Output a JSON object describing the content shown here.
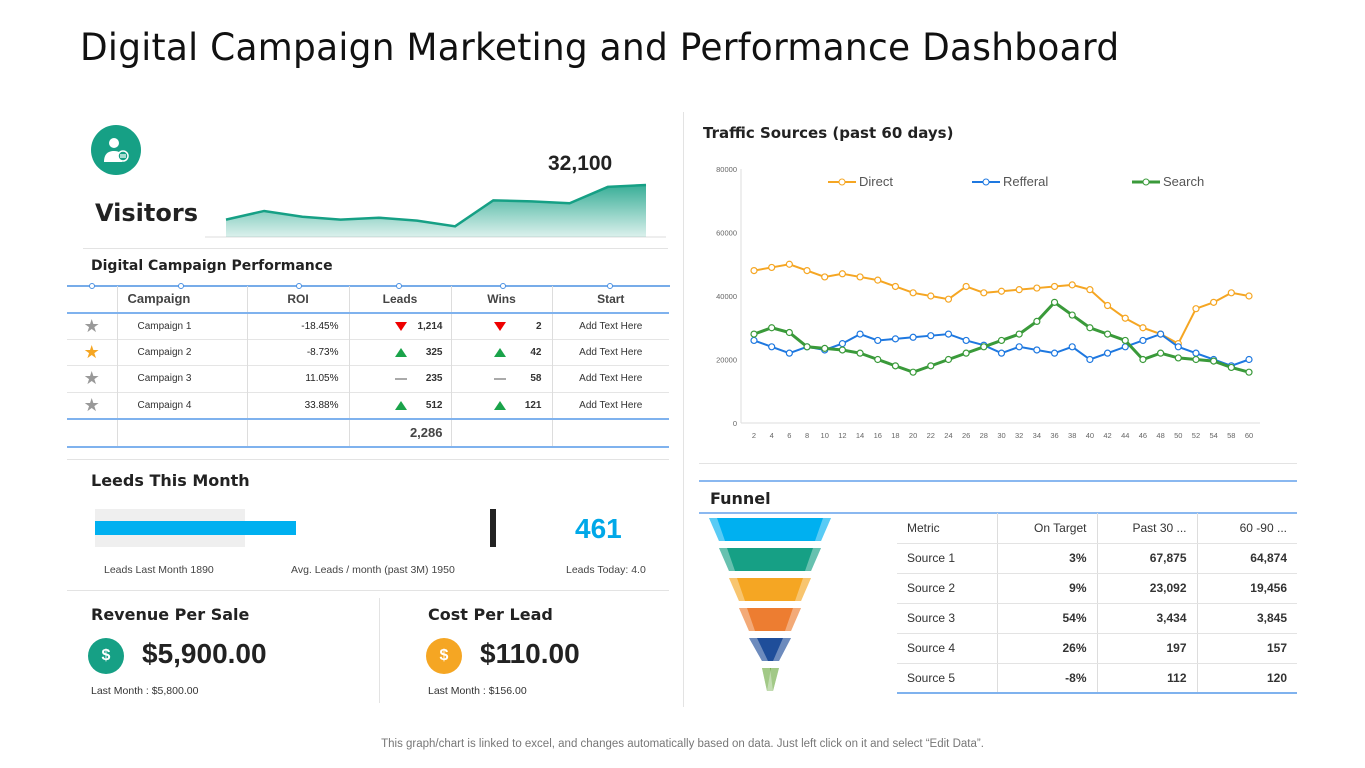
{
  "title": "Digital Campaign Marketing and Performance Dashboard",
  "visitors": {
    "label": "Visitors",
    "value": "32,100",
    "trend": [
      16,
      25,
      19,
      16,
      18,
      15,
      9,
      36,
      35,
      33,
      50,
      52
    ]
  },
  "campaign": {
    "title": "Digital Campaign Performance",
    "headers": [
      "Campaign",
      "ROI",
      "Leads",
      "Wins",
      "Start"
    ],
    "rows": [
      {
        "starred": false,
        "name": "Campaign 1",
        "roi": "-18.45%",
        "leads_trend": "down",
        "leads": "1,214",
        "wins_trend": "down",
        "wins": "2",
        "start": "Add Text Here"
      },
      {
        "starred": true,
        "name": "Campaign 2",
        "roi": "-8.73%",
        "leads_trend": "up",
        "leads": "325",
        "wins_trend": "up",
        "wins": "42",
        "start": "Add Text Here"
      },
      {
        "starred": false,
        "name": "Campaign 3",
        "roi": "11.05%",
        "leads_trend": "flat",
        "leads": "235",
        "wins_trend": "flat",
        "wins": "58",
        "start": "Add Text Here"
      },
      {
        "starred": false,
        "name": "Campaign 4",
        "roi": "33.88%",
        "leads_trend": "up",
        "leads": "512",
        "wins_trend": "up",
        "wins": "121",
        "start": "Add Text Here"
      }
    ],
    "total_leads": "2,286"
  },
  "leads": {
    "title": "Leeds This Month",
    "value": "461",
    "last_month": "Leads Last Month 1890",
    "avg": "Avg. Leads / month  (past 3M) 1950",
    "today": "Leads Today: 4.0",
    "bar_fraction": 0.51,
    "range_fraction": 0.37
  },
  "revenue": {
    "title": "Revenue Per Sale",
    "value": "$5,900.00",
    "last": "Last Month  : $5,800.00"
  },
  "cost": {
    "title": "Cost Per Lead",
    "value": "$110.00",
    "last": "Last Month  : $156.00"
  },
  "traffic": {
    "title": "Traffic Sources (past 60 days)"
  },
  "chart_data": {
    "type": "line",
    "title": "Traffic Sources (past 60 days)",
    "ylim": [
      0,
      80000
    ],
    "yticks": [
      "0",
      "20000",
      "40000",
      "60000",
      "80000"
    ],
    "x": [
      "2",
      "4",
      "6",
      "8",
      "10",
      "12",
      "14",
      "16",
      "18",
      "20",
      "22",
      "24",
      "26",
      "28",
      "30",
      "32",
      "34",
      "36",
      "38",
      "40",
      "42",
      "44",
      "46",
      "48",
      "50",
      "52",
      "54",
      "58",
      "60"
    ],
    "legend_position": "top",
    "series": [
      {
        "name": "Direct",
        "color": "#f5a623",
        "values": [
          48000,
          49000,
          50000,
          48000,
          46000,
          47000,
          46000,
          45000,
          43000,
          41000,
          40000,
          39000,
          43000,
          41000,
          41500,
          42000,
          42500,
          43000,
          43500,
          42000,
          37000,
          33000,
          30000,
          28000,
          25000,
          36000,
          38000,
          41000,
          40000
        ]
      },
      {
        "name": "Refferal",
        "color": "#1e78e0",
        "values": [
          26000,
          24000,
          22000,
          24000,
          23000,
          25000,
          28000,
          26000,
          26500,
          27000,
          27500,
          28000,
          26000,
          24500,
          22000,
          24000,
          23000,
          22000,
          24000,
          20000,
          22000,
          24000,
          26000,
          28000,
          24000,
          22000,
          20000,
          18000,
          20000
        ]
      },
      {
        "name": "Search",
        "color": "#3a9a3a",
        "values": [
          28000,
          30000,
          28500,
          24000,
          23500,
          23000,
          22000,
          20000,
          18000,
          16000,
          18000,
          20000,
          22000,
          24000,
          26000,
          28000,
          32000,
          38000,
          34000,
          30000,
          28000,
          26000,
          20000,
          22000,
          20500,
          20000,
          19500,
          17500,
          16000
        ]
      }
    ]
  },
  "funnel": {
    "title": "Funnel",
    "headers": [
      "Metric",
      "On Target",
      "Past 30 ...",
      "60 -90 ..."
    ],
    "colors": [
      "#00b0f0",
      "#16a085",
      "#f5a623",
      "#ed7d31",
      "#1f4e9a",
      "#70ad47"
    ],
    "rows": [
      {
        "metric": "Source 1",
        "target": "3%",
        "past30": "67,875",
        "past60": "64,874"
      },
      {
        "metric": "Source 2",
        "target": "9%",
        "past30": "23,092",
        "past60": "19,456"
      },
      {
        "metric": "Source 3",
        "target": "54%",
        "past30": "3,434",
        "past60": "3,845"
      },
      {
        "metric": "Source 4",
        "target": "26%",
        "past30": "197",
        "past60": "157"
      },
      {
        "metric": "Source 5",
        "target": "-8%",
        "past30": "112",
        "past60": "120"
      }
    ]
  },
  "footer": "This graph/chart is linked to excel,  and changes automatically based on data. Just left click on it and select “Edit Data”."
}
